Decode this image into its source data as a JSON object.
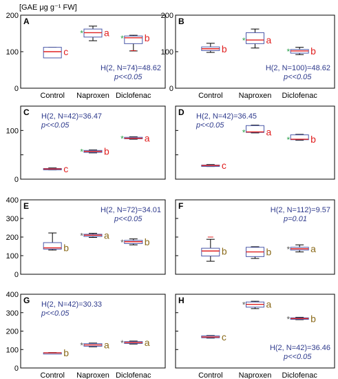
{
  "ylabel": "[GAE μg g⁻¹ FW]",
  "categories": [
    "Control",
    "Naproxen",
    "Diclofenac"
  ],
  "chart_data": [
    {
      "type": "box",
      "panel": "A",
      "ylim": [
        0,
        200
      ],
      "yticks": [
        0,
        100,
        200
      ],
      "show_categories": true,
      "stat1": "H(2, N=74)=48.62",
      "stat2": "p<<0.05",
      "stat_pos": "bottom-right",
      "letter_color": "red",
      "boxes": [
        {
          "category": "Control",
          "min": 83,
          "q1": 83,
          "median": 100,
          "q3": 112,
          "max": 112,
          "letter": "c",
          "star": false
        },
        {
          "category": "Naproxen",
          "min": 130,
          "q1": 140,
          "median": 152,
          "q3": 162,
          "max": 170,
          "letter": "a",
          "star": true
        },
        {
          "category": "Diclofenac",
          "min": 102,
          "q1": 122,
          "median": 138,
          "q3": 143,
          "max": 145,
          "letter": "b",
          "star": true,
          "outlier": 103
        }
      ]
    },
    {
      "type": "box",
      "panel": "B",
      "ylim": [
        0,
        200
      ],
      "yticks": [
        0,
        100,
        200
      ],
      "show_categories": true,
      "stat1": "H(2, N=100)=48.62",
      "stat2": "p<<0.05",
      "stat_pos": "bottom-right",
      "letter_color": "red",
      "boxes": [
        {
          "category": "Control",
          "min": 98,
          "q1": 103,
          "median": 108,
          "q3": 113,
          "max": 123,
          "letter": "b",
          "star": false
        },
        {
          "category": "Naproxen",
          "min": 110,
          "q1": 122,
          "median": 132,
          "q3": 152,
          "max": 162,
          "letter": "a",
          "star": true
        },
        {
          "category": "Diclofenac",
          "min": 92,
          "q1": 96,
          "median": 102,
          "q3": 106,
          "max": 112,
          "letter": "b",
          "star": true
        }
      ]
    },
    {
      "type": "box",
      "panel": "C",
      "ylim": [
        0,
        150
      ],
      "yticks": [
        0,
        50,
        100,
        150
      ],
      "tick_labels": [
        "0",
        "",
        "100",
        ""
      ],
      "show_categories": false,
      "stat1": "H(2, N=42)=36.47",
      "stat2": "p<<0.05",
      "stat_pos": "top-left",
      "letter_color": "red",
      "boxes": [
        {
          "category": "Control",
          "min": 19,
          "q1": 20,
          "median": 21,
          "q3": 22,
          "max": 23,
          "letter": "c",
          "star": false
        },
        {
          "category": "Naproxen",
          "min": 54,
          "q1": 55,
          "median": 57,
          "q3": 59,
          "max": 60,
          "letter": "b",
          "star": true
        },
        {
          "category": "Diclofenac",
          "min": 82,
          "q1": 83,
          "median": 84,
          "q3": 86,
          "max": 87,
          "letter": "a",
          "star": true
        }
      ]
    },
    {
      "type": "box",
      "panel": "D",
      "ylim": [
        0,
        150
      ],
      "yticks": [
        0,
        50,
        100,
        150
      ],
      "tick_labels": [
        "",
        "",
        "",
        ""
      ],
      "show_categories": false,
      "stat1": "H(2, N=42)=36.45",
      "stat2": "p<<0.05",
      "stat_pos": "top-left",
      "letter_color": "red",
      "boxes": [
        {
          "category": "Control",
          "min": 26,
          "q1": 27,
          "median": 28,
          "q3": 29,
          "max": 30,
          "letter": "c",
          "star": false
        },
        {
          "category": "Naproxen",
          "min": 95,
          "q1": 96,
          "median": 97,
          "q3": 110,
          "max": 111,
          "letter": "a",
          "star": true
        },
        {
          "category": "Diclofenac",
          "min": 80,
          "q1": 81,
          "median": 82,
          "q3": 91,
          "max": 92,
          "letter": "b",
          "star": true
        }
      ]
    },
    {
      "type": "box",
      "panel": "E",
      "ylim": [
        0,
        400
      ],
      "yticks": [
        0,
        100,
        200,
        300,
        400
      ],
      "show_categories": false,
      "stat1": "H(2, N=72)=34.01",
      "stat2": "p<<0.05",
      "stat_pos": "top-right",
      "letter_color": "olive",
      "boxes": [
        {
          "category": "Control",
          "min": 130,
          "q1": 135,
          "median": 142,
          "q3": 170,
          "max": 222,
          "letter": "b",
          "star": false
        },
        {
          "category": "Naproxen",
          "min": 198,
          "q1": 203,
          "median": 210,
          "q3": 215,
          "max": 220,
          "letter": "a",
          "star": true
        },
        {
          "category": "Diclofenac",
          "min": 158,
          "q1": 165,
          "median": 175,
          "q3": 182,
          "max": 190,
          "letter": "b",
          "star": true
        }
      ]
    },
    {
      "type": "box",
      "panel": "F",
      "ylim": [
        0,
        400
      ],
      "yticks": [
        0,
        100,
        200,
        300,
        400
      ],
      "tick_labels": [
        "",
        "",
        "",
        "",
        ""
      ],
      "show_categories": false,
      "stat1": "H(2, N=112)=9.57",
      "stat2": "p=0.01",
      "stat_pos": "top-right",
      "letter_color": "olive",
      "boxes": [
        {
          "category": "Control",
          "min": 70,
          "q1": 98,
          "median": 125,
          "q3": 140,
          "max": 188,
          "letter": "b",
          "star": false,
          "outlier": 200
        },
        {
          "category": "Naproxen",
          "min": 85,
          "q1": 95,
          "median": 120,
          "q3": 145,
          "max": 148,
          "letter": "b",
          "star": false
        },
        {
          "category": "Diclofenac",
          "min": 120,
          "q1": 130,
          "median": 137,
          "q3": 145,
          "max": 158,
          "letter": "a",
          "star": true
        }
      ]
    },
    {
      "type": "box",
      "panel": "G",
      "ylim": [
        0,
        400
      ],
      "yticks": [
        0,
        100,
        200,
        300,
        400
      ],
      "show_categories": true,
      "stat1": "H(2, N=42)=30.33",
      "stat2": "p<<0.05",
      "stat_pos": "top-left",
      "letter_color": "olive",
      "boxes": [
        {
          "category": "Control",
          "min": 80,
          "q1": 81,
          "median": 82,
          "q3": 83,
          "max": 84,
          "letter": "b",
          "star": false
        },
        {
          "category": "Naproxen",
          "min": 115,
          "q1": 118,
          "median": 125,
          "q3": 132,
          "max": 135,
          "letter": "a",
          "star": true
        },
        {
          "category": "Diclofenac",
          "min": 130,
          "q1": 133,
          "median": 138,
          "q3": 143,
          "max": 146,
          "letter": "a",
          "star": true
        }
      ]
    },
    {
      "type": "box",
      "panel": "H",
      "ylim": [
        0,
        400
      ],
      "yticks": [
        0,
        100,
        200,
        300,
        400
      ],
      "tick_labels": [
        "",
        "",
        "",
        "",
        ""
      ],
      "show_categories": true,
      "stat1": "H(2, N=42)=36.46",
      "stat2": "p<<0.05",
      "stat_pos": "bottom-right",
      "letter_color": "olive",
      "boxes": [
        {
          "category": "Control",
          "min": 162,
          "q1": 164,
          "median": 168,
          "q3": 174,
          "max": 176,
          "letter": "c",
          "star": false
        },
        {
          "category": "Naproxen",
          "min": 322,
          "q1": 330,
          "median": 345,
          "q3": 358,
          "max": 362,
          "letter": "a",
          "star": true
        },
        {
          "category": "Diclofenac",
          "min": 262,
          "q1": 264,
          "median": 268,
          "q3": 272,
          "max": 275,
          "letter": "b",
          "star": true
        }
      ]
    }
  ]
}
